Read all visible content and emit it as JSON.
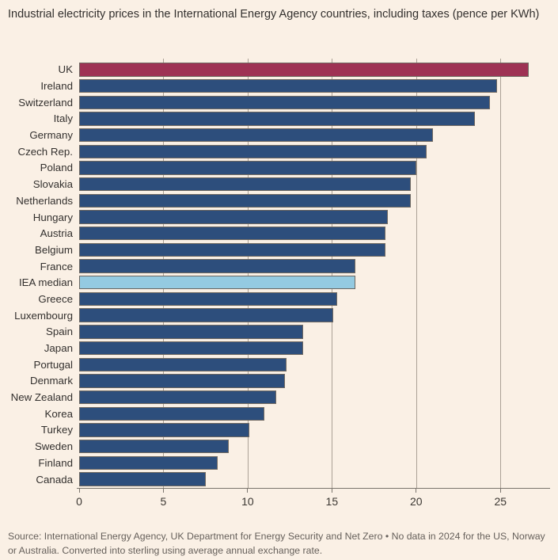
{
  "title": "Industrial electricity prices in the International Energy Agency countries, including taxes (pence per KWh)",
  "source": "Source: International Energy Agency, UK Department for Energy Security and Net Zero • No data in 2024 for the US, Norway or Australia. Converted into sterling using average annual exchange rate.",
  "theme": {
    "background": "#FAF0E5",
    "bar_border": "#6E6861",
    "gridline": "#ABA196",
    "axis": "#7A746D",
    "title_color": "#33302E",
    "label_color": "#33302E",
    "tick_color": "#3C3833",
    "source_color": "#66605B"
  },
  "chart_data": {
    "type": "bar",
    "orientation": "horizontal",
    "title": "Industrial electricity prices in the International Energy Agency countries, including taxes (pence per KWh)",
    "xlabel": "pence per KWh",
    "ylabel": "",
    "xlim": [
      0,
      27.9
    ],
    "x_ticks": [
      0,
      5,
      10,
      15,
      20,
      25
    ],
    "grid": true,
    "legend": false,
    "colors": {
      "claret": "#9E3254",
      "navy": "#2D4E7C",
      "lightblue": "#94CAE1"
    },
    "bars": [
      {
        "label": "UK",
        "value": 26.7,
        "color": "claret"
      },
      {
        "label": "Ireland",
        "value": 24.8,
        "color": "navy"
      },
      {
        "label": "Switzerland",
        "value": 24.4,
        "color": "navy"
      },
      {
        "label": "Italy",
        "value": 23.5,
        "color": "navy"
      },
      {
        "label": "Germany",
        "value": 21.0,
        "color": "navy"
      },
      {
        "label": "Czech Rep.",
        "value": 20.6,
        "color": "navy"
      },
      {
        "label": "Poland",
        "value": 20.0,
        "color": "navy"
      },
      {
        "label": "Slovakia",
        "value": 19.7,
        "color": "navy"
      },
      {
        "label": "Netherlands",
        "value": 19.7,
        "color": "navy"
      },
      {
        "label": "Hungary",
        "value": 18.3,
        "color": "navy"
      },
      {
        "label": "Austria",
        "value": 18.2,
        "color": "navy"
      },
      {
        "label": "Belgium",
        "value": 18.2,
        "color": "navy"
      },
      {
        "label": "France",
        "value": 16.4,
        "color": "navy"
      },
      {
        "label": "IEA median",
        "value": 16.4,
        "color": "lightblue"
      },
      {
        "label": "Greece",
        "value": 15.3,
        "color": "navy"
      },
      {
        "label": "Luxembourg",
        "value": 15.1,
        "color": "navy"
      },
      {
        "label": "Spain",
        "value": 13.3,
        "color": "navy"
      },
      {
        "label": "Japan",
        "value": 13.3,
        "color": "navy"
      },
      {
        "label": "Portugal",
        "value": 12.3,
        "color": "navy"
      },
      {
        "label": "Denmark",
        "value": 12.2,
        "color": "navy"
      },
      {
        "label": "New Zealand",
        "value": 11.7,
        "color": "navy"
      },
      {
        "label": "Korea",
        "value": 11.0,
        "color": "navy"
      },
      {
        "label": "Turkey",
        "value": 10.1,
        "color": "navy"
      },
      {
        "label": "Sweden",
        "value": 8.9,
        "color": "navy"
      },
      {
        "label": "Finland",
        "value": 8.2,
        "color": "navy"
      },
      {
        "label": "Canada",
        "value": 7.5,
        "color": "navy"
      }
    ]
  }
}
